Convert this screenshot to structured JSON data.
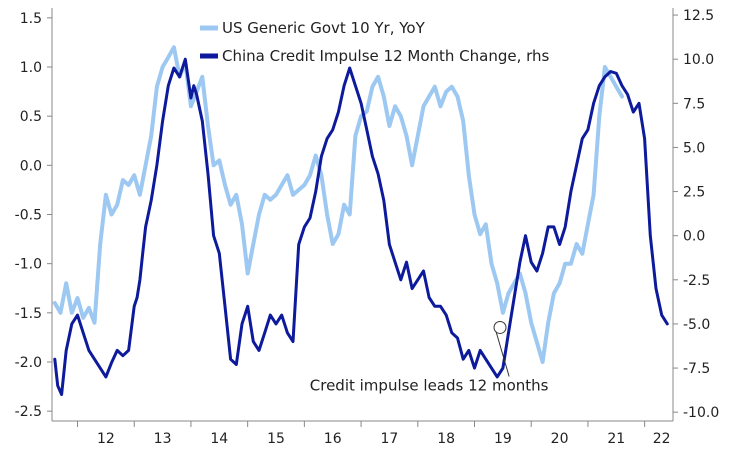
{
  "chart_data": {
    "type": "line",
    "xlim": [
      2011.55,
      2022.5
    ],
    "x_ticks": [
      {
        "label": "12",
        "x": 2012.5
      },
      {
        "label": "13",
        "x": 2013.5
      },
      {
        "label": "14",
        "x": 2014.5
      },
      {
        "label": "15",
        "x": 2015.5
      },
      {
        "label": "16",
        "x": 2016.5
      },
      {
        "label": "17",
        "x": 2017.5
      },
      {
        "label": "18",
        "x": 2018.5
      },
      {
        "label": "19",
        "x": 2019.5
      },
      {
        "label": "20",
        "x": 2020.5
      },
      {
        "label": "21",
        "x": 2021.5
      },
      {
        "label": "22",
        "x": 2022.3
      }
    ],
    "x_gridlines": [
      2012,
      2013,
      2014,
      2015,
      2016,
      2017,
      2018,
      2019,
      2020,
      2021,
      2022
    ],
    "y_left": {
      "lim": [
        -2.6,
        1.6
      ],
      "ticks": [
        1.5,
        1.0,
        0.5,
        0.0,
        -0.5,
        -1.0,
        -1.5,
        -2.0,
        -2.5
      ],
      "tick_labels": [
        "1.5",
        "1.0",
        "0.5",
        "0.0",
        "-0.5",
        "-1.0",
        "-1.5",
        "-2.0",
        "-2.5"
      ]
    },
    "y_right": {
      "lim": [
        -10.5,
        12.9
      ],
      "ticks": [
        12.5,
        10.0,
        7.5,
        5.0,
        2.5,
        0.0,
        -2.5,
        -5.0,
        -7.5,
        -10.0
      ],
      "tick_labels": [
        "12.5",
        "10.0",
        "7.5",
        "5.0",
        "2.5",
        "0.0",
        "-2.5",
        "-5.0",
        "-7.5",
        "-10.0"
      ]
    },
    "grid": false,
    "legend_position": "top-center",
    "series": [
      {
        "name": "US Generic Govt 10 Yr, YoY",
        "axis": "left",
        "color": "#9cc8f2",
        "x": [
          2011.6,
          2011.7,
          2011.8,
          2011.9,
          2012.0,
          2012.1,
          2012.2,
          2012.3,
          2012.4,
          2012.5,
          2012.6,
          2012.7,
          2012.8,
          2012.9,
          2013.0,
          2013.1,
          2013.2,
          2013.3,
          2013.4,
          2013.5,
          2013.6,
          2013.7,
          2013.8,
          2013.9,
          2014.0,
          2014.1,
          2014.2,
          2014.3,
          2014.4,
          2014.5,
          2014.6,
          2014.7,
          2014.8,
          2014.9,
          2015.0,
          2015.1,
          2015.2,
          2015.3,
          2015.4,
          2015.5,
          2015.6,
          2015.7,
          2015.8,
          2015.9,
          2016.0,
          2016.1,
          2016.2,
          2016.3,
          2016.4,
          2016.5,
          2016.6,
          2016.7,
          2016.8,
          2016.9,
          2017.0,
          2017.1,
          2017.2,
          2017.3,
          2017.4,
          2017.5,
          2017.6,
          2017.7,
          2017.8,
          2017.9,
          2018.0,
          2018.1,
          2018.2,
          2018.3,
          2018.4,
          2018.5,
          2018.6,
          2018.7,
          2018.8,
          2018.9,
          2019.0,
          2019.1,
          2019.2,
          2019.3,
          2019.4,
          2019.5,
          2019.6,
          2019.7,
          2019.8,
          2019.9,
          2020.0,
          2020.1,
          2020.2,
          2020.3,
          2020.4,
          2020.5,
          2020.6,
          2020.7,
          2020.8,
          2020.9,
          2021.0,
          2021.1,
          2021.2,
          2021.3,
          2021.4,
          2021.5,
          2021.6
        ],
        "values": [
          -1.4,
          -1.5,
          -1.2,
          -1.5,
          -1.35,
          -1.55,
          -1.45,
          -1.6,
          -0.8,
          -0.3,
          -0.5,
          -0.4,
          -0.15,
          -0.2,
          -0.1,
          -0.3,
          0.0,
          0.3,
          0.8,
          1.0,
          1.1,
          1.2,
          0.9,
          1.05,
          0.6,
          0.75,
          0.9,
          0.4,
          0.0,
          0.05,
          -0.2,
          -0.4,
          -0.3,
          -0.6,
          -1.1,
          -0.8,
          -0.5,
          -0.3,
          -0.35,
          -0.3,
          -0.2,
          -0.1,
          -0.3,
          -0.25,
          -0.2,
          -0.1,
          0.1,
          -0.1,
          -0.5,
          -0.8,
          -0.7,
          -0.4,
          -0.5,
          0.3,
          0.5,
          0.55,
          0.8,
          0.9,
          0.7,
          0.4,
          0.6,
          0.5,
          0.3,
          0.0,
          0.3,
          0.6,
          0.7,
          0.8,
          0.6,
          0.75,
          0.8,
          0.7,
          0.45,
          -0.1,
          -0.5,
          -0.7,
          -0.6,
          -1.0,
          -1.2,
          -1.5,
          -1.3,
          -1.2,
          -1.1,
          -1.3,
          -1.6,
          -1.8,
          -2.0,
          -1.6,
          -1.3,
          -1.2,
          -1.0,
          -1.0,
          -0.8,
          -0.9,
          -0.6,
          -0.3,
          0.5,
          1.0,
          0.9,
          0.8,
          0.7
        ]
      },
      {
        "name": "China Credit Impulse 12 Month Change, rhs",
        "axis": "right",
        "color": "#0d1a9c",
        "x": [
          2011.6,
          2011.65,
          2011.72,
          2011.8,
          2011.9,
          2012.0,
          2012.1,
          2012.2,
          2012.3,
          2012.4,
          2012.5,
          2012.6,
          2012.7,
          2012.8,
          2012.9,
          2013.0,
          2013.05,
          2013.1,
          2013.15,
          2013.2,
          2013.3,
          2013.4,
          2013.5,
          2013.6,
          2013.7,
          2013.8,
          2013.9,
          2014.0,
          2014.05,
          2014.1,
          2014.2,
          2014.3,
          2014.4,
          2014.5,
          2014.6,
          2014.7,
          2014.8,
          2014.9,
          2015.0,
          2015.1,
          2015.2,
          2015.3,
          2015.4,
          2015.5,
          2015.6,
          2015.7,
          2015.8,
          2015.9,
          2016.0,
          2016.1,
          2016.2,
          2016.3,
          2016.4,
          2016.5,
          2016.6,
          2016.7,
          2016.8,
          2016.9,
          2017.0,
          2017.1,
          2017.2,
          2017.3,
          2017.4,
          2017.5,
          2017.6,
          2017.7,
          2017.8,
          2017.9,
          2018.0,
          2018.1,
          2018.2,
          2018.3,
          2018.4,
          2018.5,
          2018.6,
          2018.7,
          2018.8,
          2018.9,
          2019.0,
          2019.1,
          2019.2,
          2019.3,
          2019.4,
          2019.5,
          2019.6,
          2019.7,
          2019.8,
          2019.9,
          2020.0,
          2020.1,
          2020.2,
          2020.3,
          2020.4,
          2020.5,
          2020.6,
          2020.7,
          2020.8,
          2020.9,
          2021.0,
          2021.1,
          2021.2,
          2021.3,
          2021.4,
          2021.5,
          2021.6,
          2021.7,
          2021.8,
          2021.9,
          2022.0,
          2022.1,
          2022.2,
          2022.3,
          2022.4
        ],
        "values": [
          -7.0,
          -8.5,
          -9.0,
          -6.5,
          -5.0,
          -4.5,
          -5.5,
          -6.5,
          -7.0,
          -7.5,
          -8.0,
          -7.2,
          -6.5,
          -6.8,
          -6.5,
          -4.0,
          -3.5,
          -2.5,
          -1.0,
          0.5,
          2.0,
          4.0,
          6.5,
          8.5,
          9.5,
          9.0,
          10.0,
          7.8,
          8.5,
          8.0,
          6.5,
          3.5,
          0.0,
          -1.0,
          -4.0,
          -7.0,
          -7.3,
          -5.0,
          -4.0,
          -6.0,
          -6.5,
          -5.5,
          -4.5,
          -5.0,
          -4.5,
          -5.5,
          -6.0,
          -0.5,
          0.5,
          1.0,
          2.5,
          4.5,
          5.5,
          6.0,
          7.0,
          8.5,
          9.5,
          8.5,
          7.5,
          6.0,
          4.5,
          3.5,
          2.0,
          -0.5,
          -1.5,
          -2.5,
          -1.5,
          -3.0,
          -2.5,
          -2.0,
          -3.5,
          -4.0,
          -4.0,
          -4.5,
          -5.5,
          -5.8,
          -7.0,
          -6.5,
          -7.5,
          -6.5,
          -7.0,
          -7.5,
          -8.0,
          -7.5,
          -5.5,
          -3.5,
          -1.5,
          0.0,
          -1.5,
          -2.0,
          -1.0,
          0.5,
          0.5,
          -0.5,
          0.5,
          2.5,
          4.0,
          5.5,
          6.0,
          7.5,
          8.5,
          9.0,
          9.3,
          9.2,
          8.5,
          8.0,
          7.0,
          7.5,
          5.5,
          0.0,
          -3.0,
          -4.5,
          -5.0
        ]
      }
    ],
    "annotations": [
      {
        "text": "Credit impulse leads 12 months",
        "target": {
          "x": 2019.45,
          "axis": "right",
          "y": -5.2
        },
        "text_anchor": {
          "x": 2018.2,
          "axis": "left",
          "y": -2.29
        }
      }
    ]
  }
}
